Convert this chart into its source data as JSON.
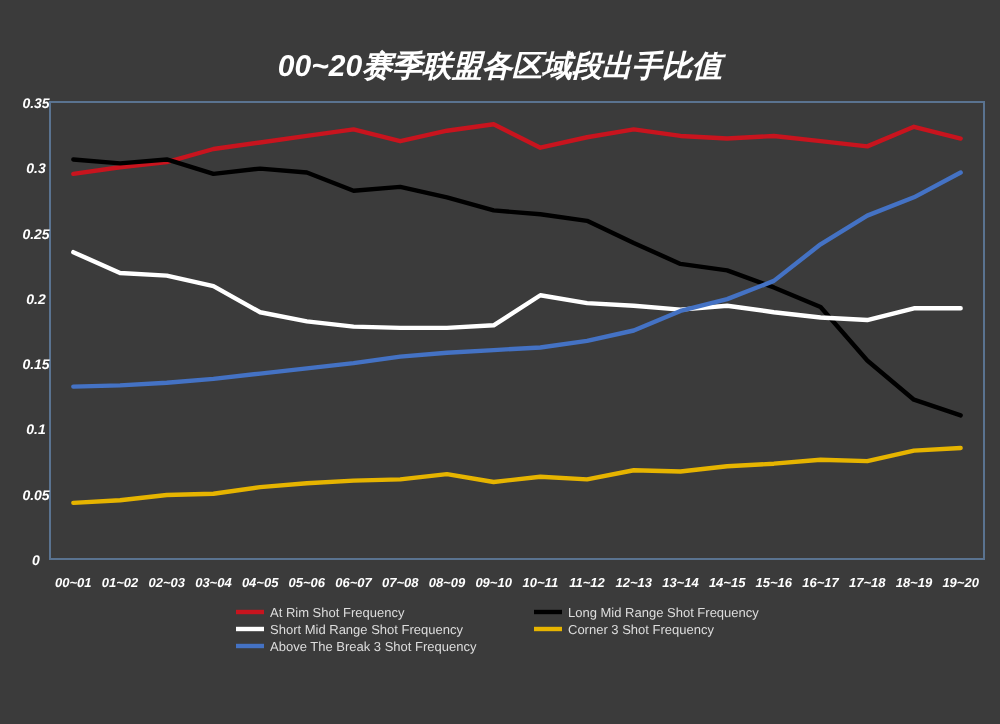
{
  "chart_data": {
    "type": "line",
    "title": "00~20赛季联盟各区域段出手比值",
    "categories": [
      "00~01",
      "01~02",
      "02~03",
      "03~04",
      "04~05",
      "05~06",
      "06~07",
      "07~08",
      "08~09",
      "09~10",
      "10~11",
      "11~12",
      "12~13",
      "13~14",
      "14~15",
      "15~16",
      "16~17",
      "17~18",
      "18~19",
      "19~20"
    ],
    "series": [
      {
        "name": "At Rim Shot Frequency",
        "color": "#c8141e",
        "values": [
          0.295,
          0.3,
          0.304,
          0.314,
          0.319,
          0.324,
          0.329,
          0.32,
          0.328,
          0.333,
          0.315,
          0.323,
          0.329,
          0.324,
          0.322,
          0.324,
          0.32,
          0.316,
          0.331,
          0.322
        ]
      },
      {
        "name": "Long Mid Range Shot Frequency",
        "color": "#000000",
        "values": [
          0.306,
          0.303,
          0.306,
          0.295,
          0.299,
          0.296,
          0.282,
          0.285,
          0.277,
          0.267,
          0.264,
          0.259,
          0.242,
          0.226,
          0.221,
          0.208,
          0.193,
          0.152,
          0.122,
          0.11
        ]
      },
      {
        "name": "Short Mid Range Shot Frequency",
        "color": "#ffffff",
        "values": [
          0.235,
          0.219,
          0.217,
          0.209,
          0.189,
          0.182,
          0.178,
          0.177,
          0.177,
          0.179,
          0.202,
          0.196,
          0.194,
          0.191,
          0.194,
          0.189,
          0.185,
          0.183,
          0.192,
          0.192
        ]
      },
      {
        "name": "Corner 3 Shot Frequency",
        "color": "#e6b400",
        "values": [
          0.043,
          0.045,
          0.049,
          0.05,
          0.055,
          0.058,
          0.06,
          0.061,
          0.065,
          0.059,
          0.063,
          0.061,
          0.068,
          0.067,
          0.071,
          0.073,
          0.076,
          0.075,
          0.083,
          0.085
        ]
      },
      {
        "name": "Above The Break 3 Shot Frequency",
        "color": "#4472c4",
        "values": [
          0.132,
          0.133,
          0.135,
          0.138,
          0.142,
          0.146,
          0.15,
          0.155,
          0.158,
          0.16,
          0.162,
          0.167,
          0.175,
          0.19,
          0.199,
          0.213,
          0.241,
          0.263,
          0.277,
          0.296
        ]
      }
    ],
    "ylim": [
      0,
      0.35
    ],
    "yticks": [
      0,
      0.05,
      0.1,
      0.15,
      0.2,
      0.25,
      0.3,
      0.35
    ],
    "legend": "bottom",
    "marker": "none",
    "line_style": "solid"
  }
}
